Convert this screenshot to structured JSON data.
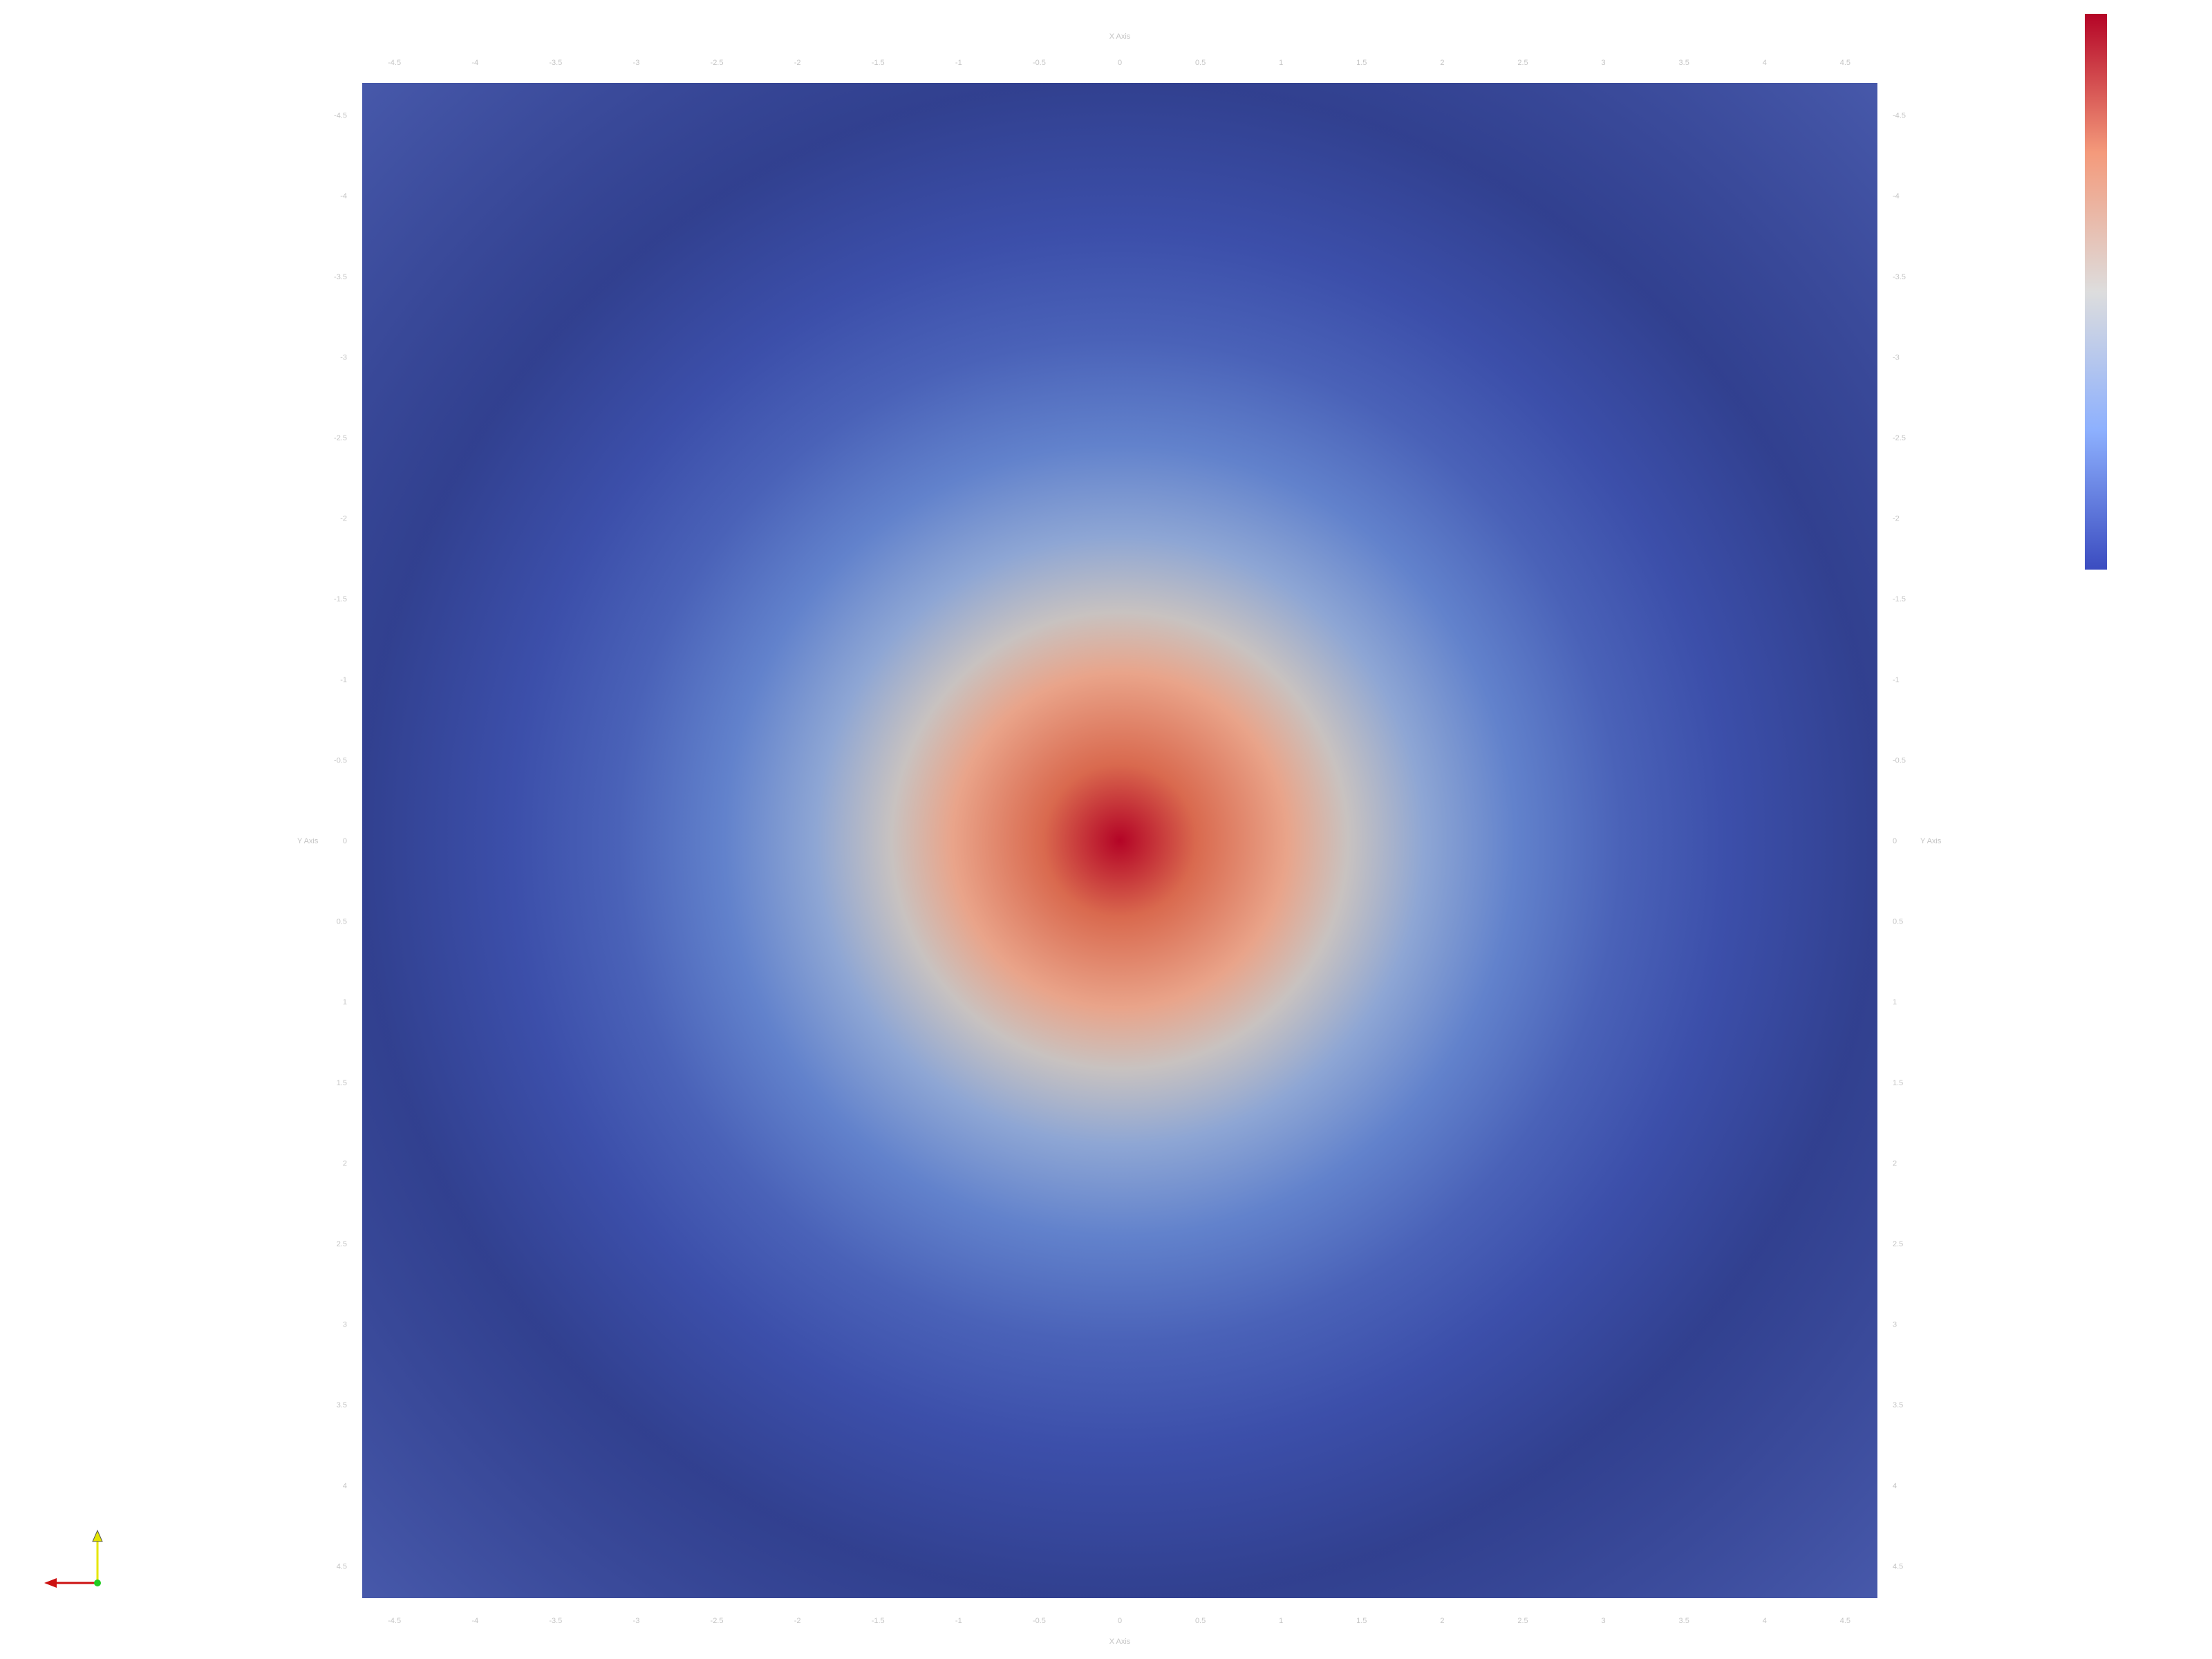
{
  "chart_data": {
    "type": "heatmap",
    "title": "",
    "field": "radially symmetric scalar field, peak at origin",
    "x_range": [
      -4.7,
      4.7
    ],
    "y_range": [
      -4.7,
      4.7
    ],
    "x_axis": {
      "title": "X Axis",
      "top_ticks": [
        "4.5",
        "4",
        "3.5",
        "3",
        "2.5",
        "2",
        "1.5",
        "1",
        "0.5",
        "0",
        "-0.5",
        "-1",
        "-1.5",
        "-2",
        "-2.5",
        "-3",
        "-3.5",
        "-4",
        "-4.5"
      ],
      "bottom_ticks": [
        "4.5",
        "4",
        "3.5",
        "3",
        "2.5",
        "2",
        "1.5",
        "1",
        "0.5",
        "0",
        "-0.5",
        "-1",
        "-1.5",
        "-2",
        "-2.5",
        "-3",
        "-3.5",
        "-4",
        "-4.5"
      ]
    },
    "y_axis": {
      "title": "Y Axis",
      "ticks": [
        "4.5",
        "4",
        "3.5",
        "3",
        "2.5",
        "2",
        "1.5",
        "1",
        "0.5",
        "0",
        "-0.5",
        "-1",
        "-1.5",
        "-2",
        "-2.5",
        "-3",
        "-3.5",
        "-4",
        "-4.5"
      ]
    },
    "peak": {
      "x": 0,
      "y": 0,
      "color": "#b40426"
    },
    "colormap": {
      "name": "Cool to Warm",
      "stops": [
        "#3b4cc0",
        "#8db0fe",
        "#dddddd",
        "#f49a7b",
        "#b40426"
      ],
      "min_color": "#3b4cc0",
      "max_color": "#b40426",
      "labels_shown": false
    },
    "grid": false,
    "legend": "colorbar top-right"
  },
  "orientation_axes": {
    "x_color": "#cc1111",
    "y_color": "#e6e600",
    "z_color": "#22cc22"
  },
  "colors": {
    "background": "#ffffff",
    "tick_text": "#c4c4c4",
    "tick_line": "#ffffff"
  }
}
